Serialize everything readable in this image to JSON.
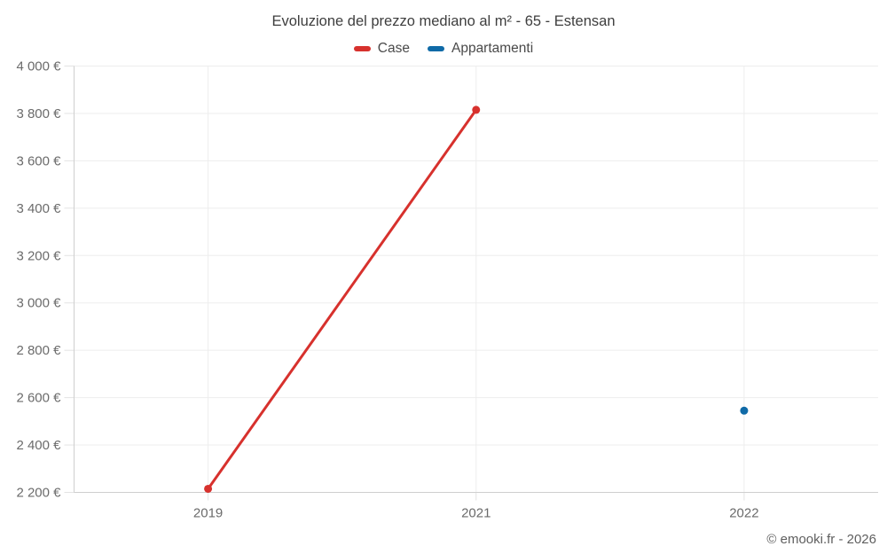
{
  "title": "Evoluzione del prezzo mediano al m² - 65 - Estensan",
  "legend": {
    "items": [
      {
        "label": "Case",
        "color": "#d7312d"
      },
      {
        "label": "Appartamenti",
        "color": "#0f6aa7"
      }
    ]
  },
  "footer": {
    "text": "© emooki.fr - 2026"
  },
  "colors": {
    "grid": "#ededed",
    "axis_border": "#cfcfcf",
    "tick": "#e3e3e3",
    "tick_label": "#6b6b6b"
  },
  "chart_data": {
    "type": "line",
    "title": "Evoluzione del prezzo mediano al m² - 65 - Estensan",
    "categories": [
      "2019",
      "2021",
      "2022"
    ],
    "series": [
      {
        "name": "Case",
        "color": "#d7312d",
        "points": [
          {
            "x": "2019",
            "y": 2215
          },
          {
            "x": "2021",
            "y": 3815
          }
        ]
      },
      {
        "name": "Appartamenti",
        "color": "#0f6aa7",
        "points": [
          {
            "x": "2022",
            "y": 2545
          }
        ]
      }
    ],
    "xlabel": "",
    "ylabel": "",
    "ylim": [
      2200,
      4000
    ],
    "yticks": [
      {
        "value": 2200,
        "label": "2 200 €"
      },
      {
        "value": 2400,
        "label": "2 400 €"
      },
      {
        "value": 2600,
        "label": "2 600 €"
      },
      {
        "value": 2800,
        "label": "2 800 €"
      },
      {
        "value": 3000,
        "label": "3 000 €"
      },
      {
        "value": 3200,
        "label": "3 200 €"
      },
      {
        "value": 3400,
        "label": "3 400 €"
      },
      {
        "value": 3600,
        "label": "3 600 €"
      },
      {
        "value": 3800,
        "label": "3 800 €"
      },
      {
        "value": 4000,
        "label": "4 000 €"
      }
    ],
    "grid": true,
    "legend_position": "top"
  }
}
